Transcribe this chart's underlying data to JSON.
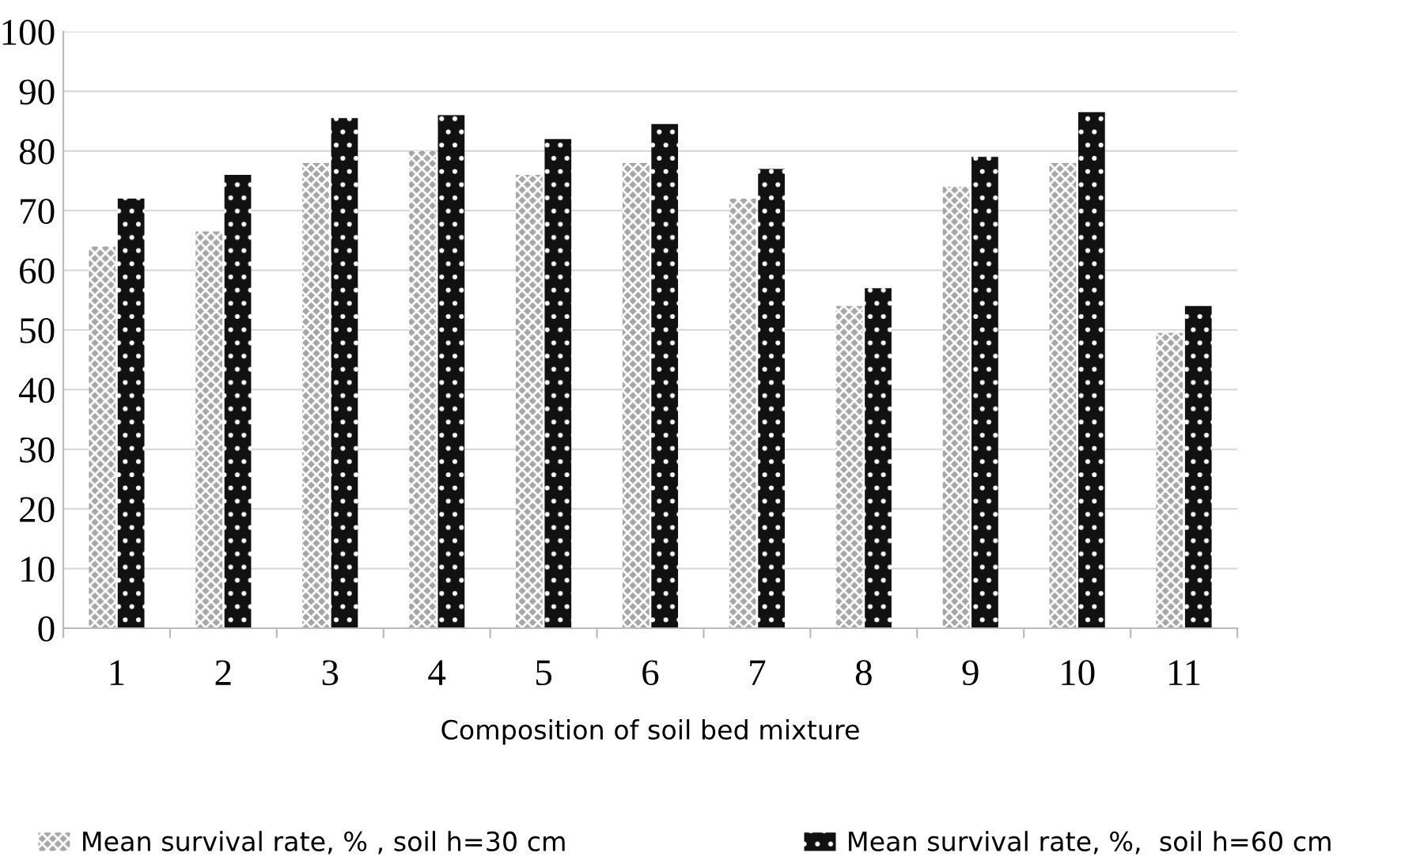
{
  "chart_data": {
    "type": "bar",
    "xlabel": "Composition of soil bed mixture",
    "categories": [
      "1",
      "2",
      "3",
      "4",
      "5",
      "6",
      "7",
      "8",
      "9",
      "10",
      "11"
    ],
    "series": [
      {
        "name": "Mean survival rate, % , soil h=30 cm",
        "color": "#a6a6a6",
        "values": [
          64,
          66.5,
          78,
          80,
          76,
          78,
          72,
          54,
          74,
          78,
          49.5
        ]
      },
      {
        "name": "Mean survival rate, %,  soil h=60 cm",
        "color": "#111111",
        "values": [
          72,
          76,
          85.5,
          86,
          82,
          84.5,
          77,
          57,
          79,
          86.5,
          54
        ]
      }
    ],
    "ylim": [
      0,
      100
    ],
    "yticks": [
      0,
      10,
      20,
      30,
      40,
      50,
      60,
      70,
      80,
      90,
      100
    ],
    "grid": "y",
    "legend": "bottom"
  }
}
